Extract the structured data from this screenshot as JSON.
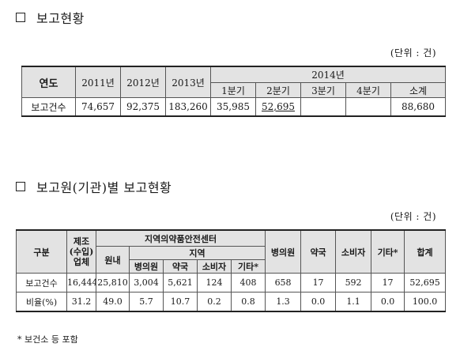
{
  "section1": {
    "heading": "보고현황",
    "unit": "(단위 : 건)",
    "header": {
      "year_label": "연도",
      "years": [
        "2011년",
        "2012년",
        "2013년"
      ],
      "year_2014": "2014년",
      "quarters": [
        "1분기",
        "2분기",
        "3분기",
        "4분기",
        "소계"
      ]
    },
    "row": {
      "label": "보고건수",
      "values": [
        "74,657",
        "92,375",
        "183,260",
        "35,985",
        "52,695",
        "",
        "",
        "88,680"
      ]
    }
  },
  "section2": {
    "heading": "보고원(기관)별 보고현황",
    "unit": "(단위 : 건)",
    "header": {
      "category": "구분",
      "manufacturer_line1": "제조",
      "manufacturer_line2": "(수입)",
      "manufacturer_line3": "업체",
      "center": "지역의약품안전센터",
      "in_house": "원내",
      "region": "지역",
      "region_cols": [
        "병의원",
        "약국",
        "소비자",
        "기타*"
      ],
      "others": [
        "병의원",
        "약국",
        "소비자",
        "기타*",
        "합계"
      ]
    },
    "rows": [
      {
        "label": "보고건수",
        "values": [
          "16,444",
          "25,810",
          "3,004",
          "5,621",
          "124",
          "408",
          "658",
          "17",
          "592",
          "17",
          "52,695"
        ]
      },
      {
        "label": "비율(%)",
        "values": [
          "31.2",
          "49.0",
          "5.7",
          "10.7",
          "0.2",
          "0.8",
          "1.3",
          "0.0",
          "1.1",
          "0.0",
          "100.0"
        ]
      }
    ],
    "footnote": "* 보건소 등 포함"
  }
}
